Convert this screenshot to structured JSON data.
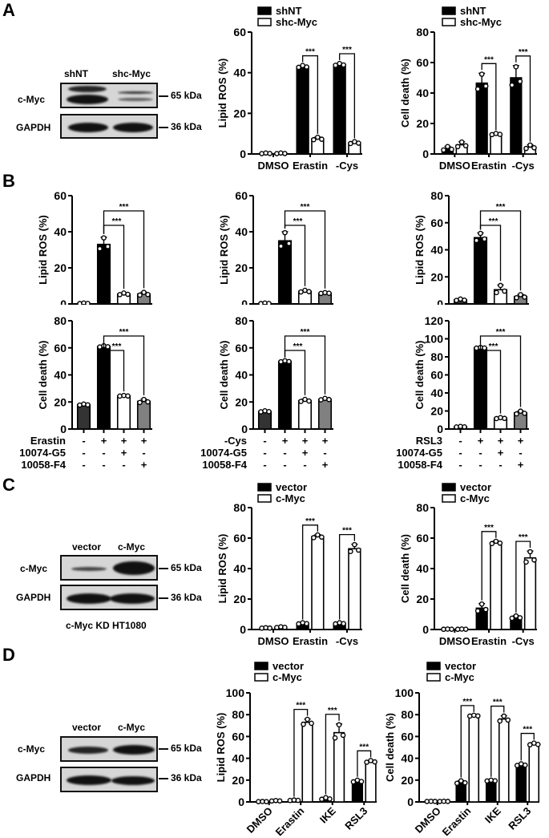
{
  "panels": {
    "A": {
      "letter": "A"
    },
    "B": {
      "letter": "B"
    },
    "C": {
      "letter": "C"
    },
    "D": {
      "letter": "D"
    }
  },
  "blots": {
    "A": {
      "lanes": [
        "shNT",
        "shc-Myc"
      ],
      "rows": [
        "c-Myc",
        "GAPDH"
      ],
      "markers": [
        "65 kDa",
        "36 kDa"
      ],
      "caption": ""
    },
    "C": {
      "lanes": [
        "vector",
        "c-Myc"
      ],
      "rows": [
        "c-Myc",
        "GAPDH"
      ],
      "markers": [
        "65 kDa",
        "36 kDa"
      ],
      "caption": "c-Myc KD HT1080"
    },
    "D": {
      "lanes": [
        "vector",
        "c-Myc"
      ],
      "rows": [
        "c-Myc",
        "GAPDH"
      ],
      "markers": [
        "65 kDa",
        "36 kDa"
      ],
      "caption": ""
    }
  },
  "chart_data": [
    {
      "id": "A_ros",
      "type": "bar",
      "title": "",
      "ylabel": "Lipid ROS (%)",
      "xlabel": "",
      "categories": [
        "DMSO",
        "Erastin",
        "-Cys"
      ],
      "ylim": [
        0,
        60
      ],
      "yticks": [
        0,
        20,
        40,
        60
      ],
      "legend": [
        "shNT",
        "shc-Myc"
      ],
      "series": [
        {
          "name": "shNT",
          "color": "#000000",
          "values": [
            0.3,
            43,
            44
          ],
          "sd": [
            0.2,
            0.6,
            0.6
          ]
        },
        {
          "name": "shc-Myc",
          "color": "#ffffff",
          "values": [
            0.3,
            7.5,
            5.5
          ],
          "sd": [
            0.2,
            0.8,
            0.6
          ]
        }
      ],
      "significance": [
        "",
        "***",
        "***"
      ]
    },
    {
      "id": "A_death",
      "type": "bar",
      "title": "",
      "ylabel": "Cell death (%)",
      "xlabel": "",
      "categories": [
        "DMSO",
        "Erastin",
        "-Cys"
      ],
      "ylim": [
        0,
        80
      ],
      "yticks": [
        0,
        20,
        40,
        60,
        80
      ],
      "legend": [
        "shNT",
        "shc-Myc"
      ],
      "series": [
        {
          "name": "shNT",
          "color": "#000000",
          "values": [
            3.5,
            46.5,
            50
          ],
          "sd": [
            1.5,
            6.5,
            8
          ]
        },
        {
          "name": "shc-Myc",
          "color": "#ffffff",
          "values": [
            6,
            13,
            4.5
          ],
          "sd": [
            2,
            0.5,
            1.5
          ]
        }
      ],
      "significance": [
        "",
        "***",
        "***"
      ]
    },
    {
      "id": "B_erastin_ros",
      "type": "bar",
      "ylabel": "Lipid ROS (%)",
      "ylim": [
        0,
        60
      ],
      "yticks": [
        0,
        20,
        40,
        60
      ],
      "values": [
        0.3,
        33,
        5.5,
        5.5
      ],
      "sd": [
        0.2,
        4,
        0.6,
        1
      ],
      "colors": [
        "#333333",
        "#000000",
        "#ffffff",
        "#808080"
      ],
      "significance": [
        [
          "***",
          1,
          2
        ],
        [
          "***",
          1,
          3
        ]
      ]
    },
    {
      "id": "B_cys_ros",
      "type": "bar",
      "ylabel": "Lipid ROS (%)",
      "ylim": [
        0,
        60
      ],
      "yticks": [
        0,
        20,
        40,
        60
      ],
      "values": [
        0.3,
        35,
        7,
        6
      ],
      "sd": [
        0.2,
        5,
        0.6,
        0.3
      ],
      "colors": [
        "#333333",
        "#000000",
        "#ffffff",
        "#808080"
      ],
      "significance": [
        [
          "***",
          1,
          2
        ],
        [
          "***",
          1,
          3
        ]
      ]
    },
    {
      "id": "B_rsl3_ros",
      "type": "bar",
      "ylabel": "Lipid ROS (%)",
      "ylim": [
        0,
        80
      ],
      "yticks": [
        0,
        20,
        40,
        60,
        80
      ],
      "values": [
        3,
        49,
        10.5,
        5.5
      ],
      "sd": [
        0.7,
        3.5,
        3.5,
        1.5
      ],
      "colors": [
        "#333333",
        "#000000",
        "#ffffff",
        "#808080"
      ],
      "significance": [
        [
          "***",
          1,
          2
        ],
        [
          "***",
          1,
          3
        ]
      ]
    },
    {
      "id": "B_erastin_death",
      "type": "bar",
      "ylabel": "Cell death (%)",
      "ylim": [
        0,
        80
      ],
      "yticks": [
        0,
        20,
        40,
        60,
        80
      ],
      "values": [
        18,
        61,
        24.5,
        20.5
      ],
      "sd": [
        0.5,
        0.6,
        0.3,
        1.5
      ],
      "colors": [
        "#333333",
        "#000000",
        "#ffffff",
        "#808080"
      ],
      "significance": [
        [
          "***",
          1,
          2
        ],
        [
          "***",
          1,
          3
        ]
      ],
      "conditions": {
        "rows": [
          "Erastin",
          "10074-G5",
          "10058-F4"
        ],
        "signs": [
          [
            "-",
            "+",
            "+",
            "+"
          ],
          [
            "-",
            "-",
            "+",
            "-"
          ],
          [
            "-",
            "-",
            "-",
            "+"
          ]
        ]
      }
    },
    {
      "id": "B_cys_death",
      "type": "bar",
      "ylabel": "Cell death (%)",
      "ylim": [
        0,
        80
      ],
      "yticks": [
        0,
        20,
        40,
        60,
        80
      ],
      "values": [
        13,
        50,
        21,
        22
      ],
      "sd": [
        0.5,
        0.5,
        1,
        0.7
      ],
      "colors": [
        "#333333",
        "#000000",
        "#ffffff",
        "#808080"
      ],
      "significance": [
        [
          "***",
          1,
          2
        ],
        [
          "***",
          1,
          3
        ]
      ],
      "conditions": {
        "rows": [
          "-Cys",
          "10074-G5",
          "10058-F4"
        ],
        "signs": [
          [
            "-",
            "+",
            "+",
            "+"
          ],
          [
            "-",
            "-",
            "+",
            "-"
          ],
          [
            "-",
            "-",
            "-",
            "+"
          ]
        ]
      }
    },
    {
      "id": "B_rsl3_death",
      "type": "bar",
      "ylabel": "Cell death (%)",
      "ylim": [
        0,
        120
      ],
      "yticks": [
        0,
        20,
        40,
        60,
        80,
        100,
        120
      ],
      "values": [
        2.5,
        90,
        12,
        18
      ],
      "sd": [
        0.4,
        0.5,
        0.7,
        2
      ],
      "colors": [
        "#333333",
        "#000000",
        "#ffffff",
        "#808080"
      ],
      "significance": [
        [
          "***",
          1,
          2
        ],
        [
          "***",
          1,
          3
        ]
      ],
      "conditions": {
        "rows": [
          "RSL3",
          "10074-G5",
          "10058-F4"
        ],
        "signs": [
          [
            "-",
            "+",
            "+",
            "+"
          ],
          [
            "-",
            "-",
            "+",
            "-"
          ],
          [
            "-",
            "-",
            "-",
            "+"
          ]
        ]
      }
    },
    {
      "id": "C_ros",
      "type": "bar",
      "ylabel": "Lipid ROS (%)",
      "categories": [
        "DMSO",
        "Erastin",
        "-Cys"
      ],
      "ylim": [
        0,
        80
      ],
      "yticks": [
        0,
        20,
        40,
        60,
        80
      ],
      "legend": [
        "vector",
        "c-Myc"
      ],
      "series": [
        {
          "name": "vector",
          "color": "#000000",
          "values": [
            1,
            4,
            4
          ],
          "sd": [
            0.2,
            0.5,
            0.5
          ]
        },
        {
          "name": "c-Myc",
          "color": "#ffffff",
          "values": [
            1.5,
            61,
            53
          ],
          "sd": [
            0.3,
            1.2,
            3
          ]
        }
      ],
      "significance": [
        "",
        "***",
        "***"
      ]
    },
    {
      "id": "C_death",
      "type": "bar",
      "ylabel": "Cell death (%)",
      "categories": [
        "DMSO",
        "Erastin",
        "-Cys"
      ],
      "ylim": [
        0,
        80
      ],
      "yticks": [
        0,
        20,
        40,
        60,
        80
      ],
      "legend": [
        "vector",
        "c-Myc"
      ],
      "series": [
        {
          "name": "vector",
          "color": "#000000",
          "values": [
            0.2,
            14,
            8
          ],
          "sd": [
            0.1,
            3,
            1
          ]
        },
        {
          "name": "c-Myc",
          "color": "#ffffff",
          "values": [
            0.2,
            57,
            47
          ],
          "sd": [
            0.1,
            1,
            4.5
          ]
        }
      ],
      "significance": [
        "",
        "***",
        "***"
      ]
    },
    {
      "id": "D_ros",
      "type": "bar",
      "ylabel": "Lipid ROS (%)",
      "categories": [
        "DMSO",
        "Erastin",
        "IKE",
        "RSL3"
      ],
      "ylim": [
        0,
        100
      ],
      "yticks": [
        0,
        20,
        40,
        60,
        80,
        100
      ],
      "xtick_rotation": -45,
      "legend": [
        "vector",
        "c-Myc"
      ],
      "series": [
        {
          "name": "vector",
          "color": "#000000",
          "values": [
            0.3,
            1.5,
            3,
            19
          ],
          "sd": [
            0.1,
            0.3,
            1,
            1
          ]
        },
        {
          "name": "c-Myc",
          "color": "#ffffff",
          "values": [
            1,
            73,
            63.5,
            37
          ],
          "sd": [
            0.3,
            3,
            8,
            1
          ]
        }
      ],
      "significance": [
        "",
        "***",
        "***",
        "***"
      ]
    },
    {
      "id": "D_death",
      "type": "bar",
      "ylabel": "Cell death (%)",
      "categories": [
        "DMSO",
        "Erastin",
        "IKE",
        "RSL3"
      ],
      "ylim": [
        0,
        100
      ],
      "yticks": [
        0,
        20,
        40,
        60,
        80,
        100
      ],
      "xtick_rotation": -45,
      "legend": [
        "vector",
        "c-Myc"
      ],
      "series": [
        {
          "name": "vector",
          "color": "#000000",
          "values": [
            0.5,
            18,
            19.5,
            34
          ],
          "sd": [
            0.1,
            1.5,
            0.5,
            1
          ]
        },
        {
          "name": "c-Myc",
          "color": "#ffffff",
          "values": [
            0.5,
            79,
            76,
            53
          ],
          "sd": [
            0.1,
            0.5,
            3,
            1
          ]
        }
      ],
      "significance": [
        "",
        "***",
        "***",
        "***"
      ]
    }
  ]
}
